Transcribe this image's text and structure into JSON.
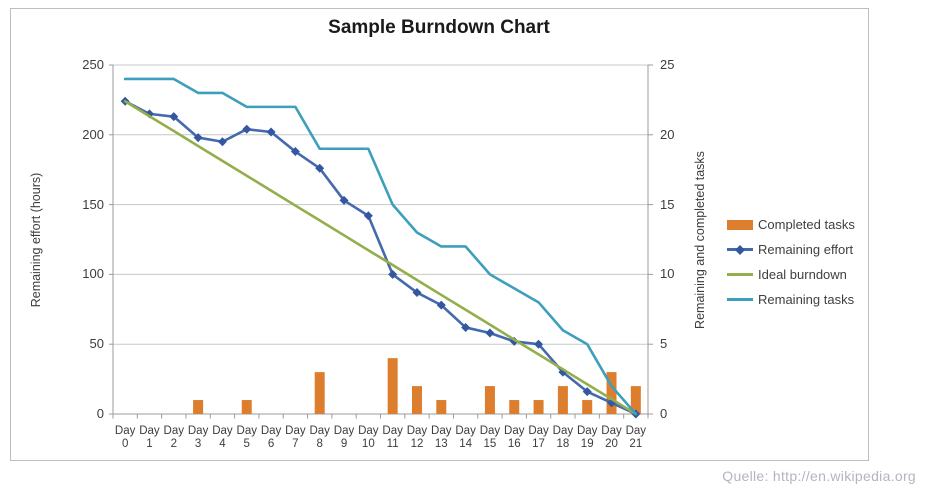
{
  "page": {
    "watermark": "Quelle: http://en.wikipedia.org"
  },
  "chart_data": {
    "type": "combo",
    "title": "Sample Burndown Chart",
    "categories": [
      "Day 0",
      "Day 1",
      "Day 2",
      "Day 3",
      "Day 4",
      "Day 5",
      "Day 6",
      "Day 7",
      "Day 8",
      "Day 9",
      "Day 10",
      "Day 11",
      "Day 12",
      "Day 13",
      "Day 14",
      "Day 15",
      "Day 16",
      "Day 17",
      "Day 18",
      "Day 19",
      "Day 20",
      "Day 21"
    ],
    "series": [
      {
        "name": "Completed tasks",
        "type": "bar",
        "axis": "right",
        "color": "#dd7e2e",
        "values": [
          0,
          0,
          0,
          1,
          0,
          1,
          0,
          0,
          3,
          0,
          0,
          4,
          2,
          1,
          0,
          2,
          1,
          1,
          2,
          1,
          3,
          2
        ]
      },
      {
        "name": "Remaining effort",
        "type": "line",
        "axis": "left",
        "color": "#4569ae",
        "marker": "diamond",
        "marker_color": "#35579f",
        "values": [
          224,
          215,
          213,
          198,
          195,
          204,
          202,
          188,
          176,
          153,
          142,
          100,
          87,
          78,
          62,
          58,
          52,
          50,
          30,
          16,
          8,
          0
        ]
      },
      {
        "name": "Ideal burndown",
        "type": "line",
        "axis": "left",
        "color": "#93ae4b",
        "values": [
          224,
          213.3,
          202.7,
          192,
          181.3,
          170.7,
          160,
          149.3,
          138.7,
          128,
          117.3,
          106.7,
          96,
          85.3,
          74.7,
          64,
          53.3,
          42.7,
          32,
          21.3,
          10.7,
          0
        ]
      },
      {
        "name": "Remaining tasks",
        "type": "line",
        "axis": "right",
        "color": "#3d9fbb",
        "values": [
          24,
          24,
          24,
          23,
          23,
          22,
          22,
          22,
          19,
          19,
          19,
          15,
          13,
          12,
          12,
          10,
          9,
          8,
          6,
          5,
          2,
          0
        ]
      }
    ],
    "left_axis": {
      "label": "Remaining effort (hours)",
      "ticks": [
        250,
        200,
        150,
        100,
        50,
        0
      ],
      "range": [
        0,
        250
      ]
    },
    "right_axis": {
      "label": "Remaining and completed tasks",
      "ticks": [
        25,
        20,
        15,
        10,
        5,
        0
      ],
      "range": [
        0,
        25
      ]
    },
    "x_axis": {
      "label_prefix": "Day",
      "grid": "horizontal-only"
    },
    "legend": {
      "position": "right-middle"
    }
  }
}
